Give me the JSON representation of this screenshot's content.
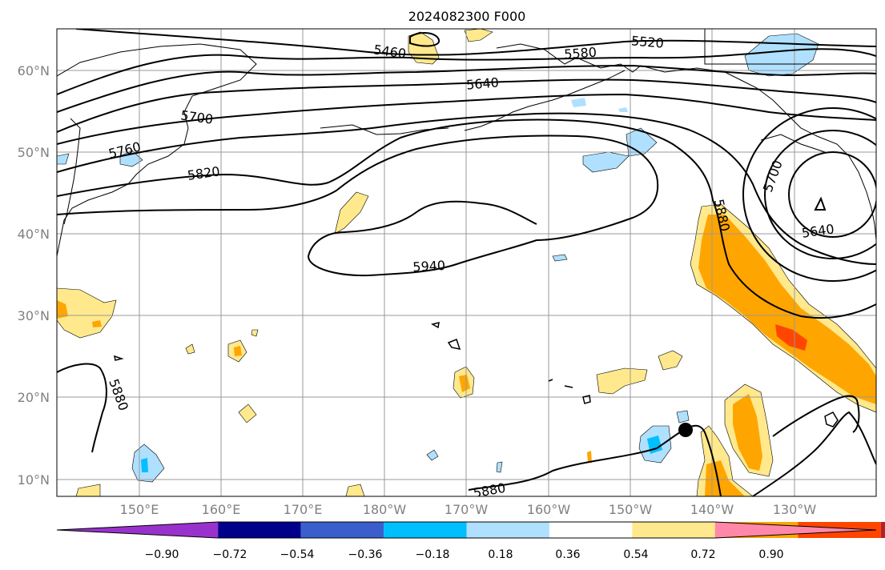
{
  "title": "2024082300 F000",
  "map": {
    "lon_range": [
      140,
      240
    ],
    "lat_range": [
      8,
      65
    ],
    "gridlines": true,
    "lon_ticks": [
      "150°E",
      "160°E",
      "170°E",
      "180°W",
      "170°W",
      "160°W",
      "150°W",
      "140°W",
      "130°W"
    ],
    "lat_ticks": [
      "10°N",
      "20°N",
      "30°N",
      "40°N",
      "50°N",
      "60°N"
    ],
    "contour_labels": [
      "5460",
      "5520",
      "5580",
      "5640",
      "5700",
      "5760",
      "5820",
      "5940",
      "5880",
      "5700",
      "5640",
      "5880",
      "5880"
    ],
    "marker": "black-dot"
  },
  "colorbar": {
    "ticks": [
      "−0.90",
      "−0.72",
      "−0.54",
      "−0.36",
      "−0.18",
      "0.18",
      "0.36",
      "0.54",
      "0.72",
      "0.90"
    ],
    "colors": [
      "#9932CC",
      "#00008B",
      "#3A5FCD",
      "#00BFFF",
      "#B0E0FF",
      "#FFFFFF",
      "#FFE98C",
      "#FFA500",
      "#FF4500",
      "#B22222",
      "#FF88AA"
    ]
  }
}
